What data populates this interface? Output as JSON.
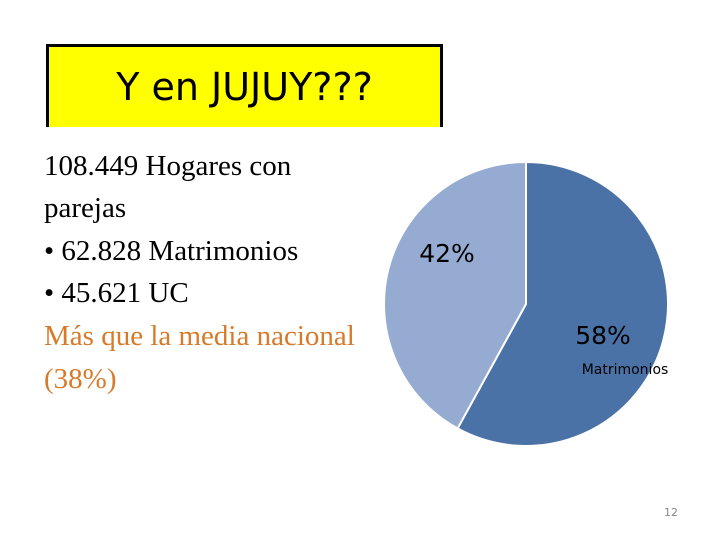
{
  "title": "Y en JUJUY???",
  "body": {
    "lines": [
      "108.449 Hogares con",
      "parejas",
      "• 62.828  Matrimonios",
      "• 45.621 UC",
      "Más que la media nacional",
      "(38%)"
    ]
  },
  "chart_data": {
    "type": "pie",
    "categories": [
      "Matrimonios",
      null
    ],
    "values": [
      58,
      42
    ],
    "value_labels": [
      "58%",
      "42%"
    ],
    "colors": [
      "#4a72a6",
      "#95abd1"
    ]
  },
  "page_number": "12"
}
